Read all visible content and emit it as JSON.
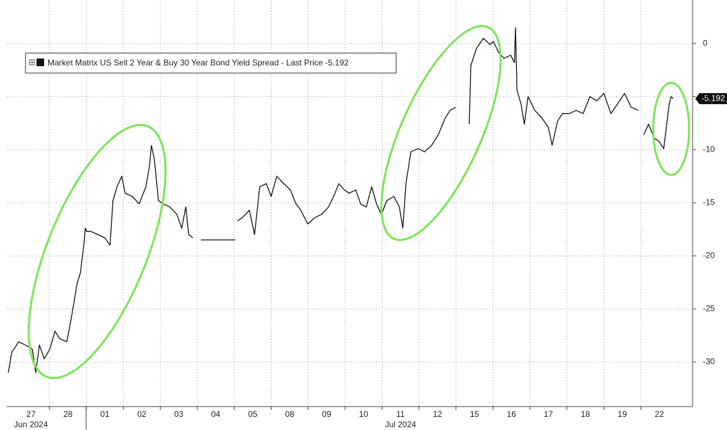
{
  "chart_data": {
    "type": "line",
    "x": [
      -0.11,
      -0.02,
      0.17,
      0.35,
      0.54,
      0.63,
      0.73,
      0.86,
      1.01,
      1.15,
      1.28,
      1.47,
      1.56,
      1.66,
      1.75,
      1.84,
      1.94,
      1.97,
      2.01,
      2.12,
      2.31,
      2.5,
      2.64,
      2.72,
      2.83,
      2.96,
      3.05,
      3.24,
      3.43,
      3.61,
      3.71,
      3.76,
      3.84,
      3.95,
      4.08,
      4.26,
      4.45,
      4.58,
      4.69,
      4.77,
      4.88,
      4.95,
      5.1,
      6.03,
      6.05,
      6.09,
      6.22,
      6.41,
      6.55,
      6.69,
      6.87,
      7.0,
      7.15,
      7.34,
      7.52,
      7.67,
      7.8,
      7.99,
      8.18,
      8.36,
      8.55,
      8.69,
      8.83,
      8.98,
      9.11,
      9.29,
      9.42,
      9.57,
      9.72,
      9.85,
      9.98,
      10.13,
      10.32,
      10.47,
      10.56,
      10.65,
      10.78,
      10.97,
      11.15,
      11.34,
      11.52,
      11.71,
      11.84,
      11.99,
      12.1,
      12.36,
      12.4,
      12.55,
      12.74,
      12.92,
      13.01,
      13.15,
      13.3,
      13.48,
      13.58,
      13.61,
      13.65,
      13.76,
      13.85,
      13.95,
      14.13,
      14.32,
      14.5,
      14.6,
      14.75,
      14.88,
      15.07,
      15.25,
      15.44,
      15.62,
      15.81,
      16.0,
      16.19,
      16.37,
      16.56,
      16.74,
      16.93,
      17.0,
      17.08,
      17.21,
      17.36,
      17.49,
      17.62,
      17.69,
      17.77,
      17.82,
      17.88
    ],
    "series": [
      {
        "name": "Market Matrix US Sell 2 Year & Buy 30 Year Bond Yield Spread - Last Price",
        "color": "#111111",
        "values": [
          -31.0,
          -29.1,
          -28.1,
          -28.4,
          -28.8,
          -31.0,
          -28.4,
          -29.7,
          -28.8,
          -27.1,
          -27.8,
          -28.1,
          -26.5,
          -24.5,
          -22.6,
          -21.6,
          -18.7,
          -17.4,
          -17.7,
          -17.7,
          -18.0,
          -18.3,
          -19.0,
          -14.8,
          -13.5,
          -12.5,
          -14.1,
          -14.4,
          -15.1,
          -13.5,
          -11.5,
          -9.6,
          -10.9,
          -14.8,
          -15.1,
          -15.4,
          -16.1,
          -17.4,
          -15.4,
          -18.0,
          -18.3,
          null,
          -18.5,
          -18.5,
          null,
          -16.7,
          -16.4,
          -15.7,
          -18.0,
          -13.5,
          -13.2,
          -14.4,
          -12.5,
          -13.2,
          -13.8,
          -15.1,
          -15.7,
          -17.0,
          -16.4,
          -16.1,
          -15.4,
          -14.4,
          -13.2,
          -13.8,
          -14.1,
          -13.8,
          -15.1,
          -15.4,
          -13.5,
          -15.1,
          -16.1,
          -14.8,
          -14.4,
          -15.4,
          -17.4,
          -13.1,
          -10.2,
          -9.9,
          -10.2,
          -9.6,
          -8.6,
          -7.0,
          -6.3,
          -6.0,
          null,
          -7.6,
          -2.1,
          -0.5,
          0.5,
          -0.1,
          0.2,
          -0.8,
          -1.4,
          -1.1,
          -1.8,
          1.5,
          -4.4,
          -5.7,
          -7.6,
          -5.0,
          -6.3,
          -7.0,
          -7.9,
          -9.6,
          -7.3,
          -6.6,
          -6.6,
          -6.3,
          -6.6,
          -5.0,
          -5.4,
          -4.7,
          -6.6,
          -5.7,
          -4.7,
          -6.0,
          -6.3,
          null,
          -8.6,
          -7.6,
          -8.9,
          -9.2,
          -9.9,
          -7.9,
          -5.7,
          -5.0,
          -5.192
        ]
      }
    ],
    "last_price": -5.192,
    "xlim": [
      -0.15,
      18.4
    ],
    "xticks": [
      {
        "value": 0.5,
        "label": "27"
      },
      {
        "value": 1.5,
        "label": "28"
      },
      {
        "value": 2.5,
        "label": "01"
      },
      {
        "value": 3.5,
        "label": "02"
      },
      {
        "value": 4.5,
        "label": "03"
      },
      {
        "value": 5.5,
        "label": "04"
      },
      {
        "value": 6.5,
        "label": "05"
      },
      {
        "value": 7.5,
        "label": "08"
      },
      {
        "value": 8.5,
        "label": "09"
      },
      {
        "value": 9.5,
        "label": "10"
      },
      {
        "value": 10.5,
        "label": "11"
      },
      {
        "value": 11.5,
        "label": "12"
      },
      {
        "value": 12.5,
        "label": "15"
      },
      {
        "value": 13.5,
        "label": "16"
      },
      {
        "value": 14.5,
        "label": "17"
      },
      {
        "value": 15.5,
        "label": "18"
      },
      {
        "value": 16.5,
        "label": "19"
      },
      {
        "value": 17.5,
        "label": "22"
      }
    ],
    "x_group_labels": [
      {
        "value": 0.5,
        "label": "Jun 2024"
      },
      {
        "value": 10.5,
        "label": "Jul 2024"
      }
    ],
    "ylim": [
      -34.2,
      4.1
    ],
    "yticks": [
      0,
      -5,
      -10,
      -15,
      -20,
      -25,
      -30
    ],
    "grid": true
  }
}
